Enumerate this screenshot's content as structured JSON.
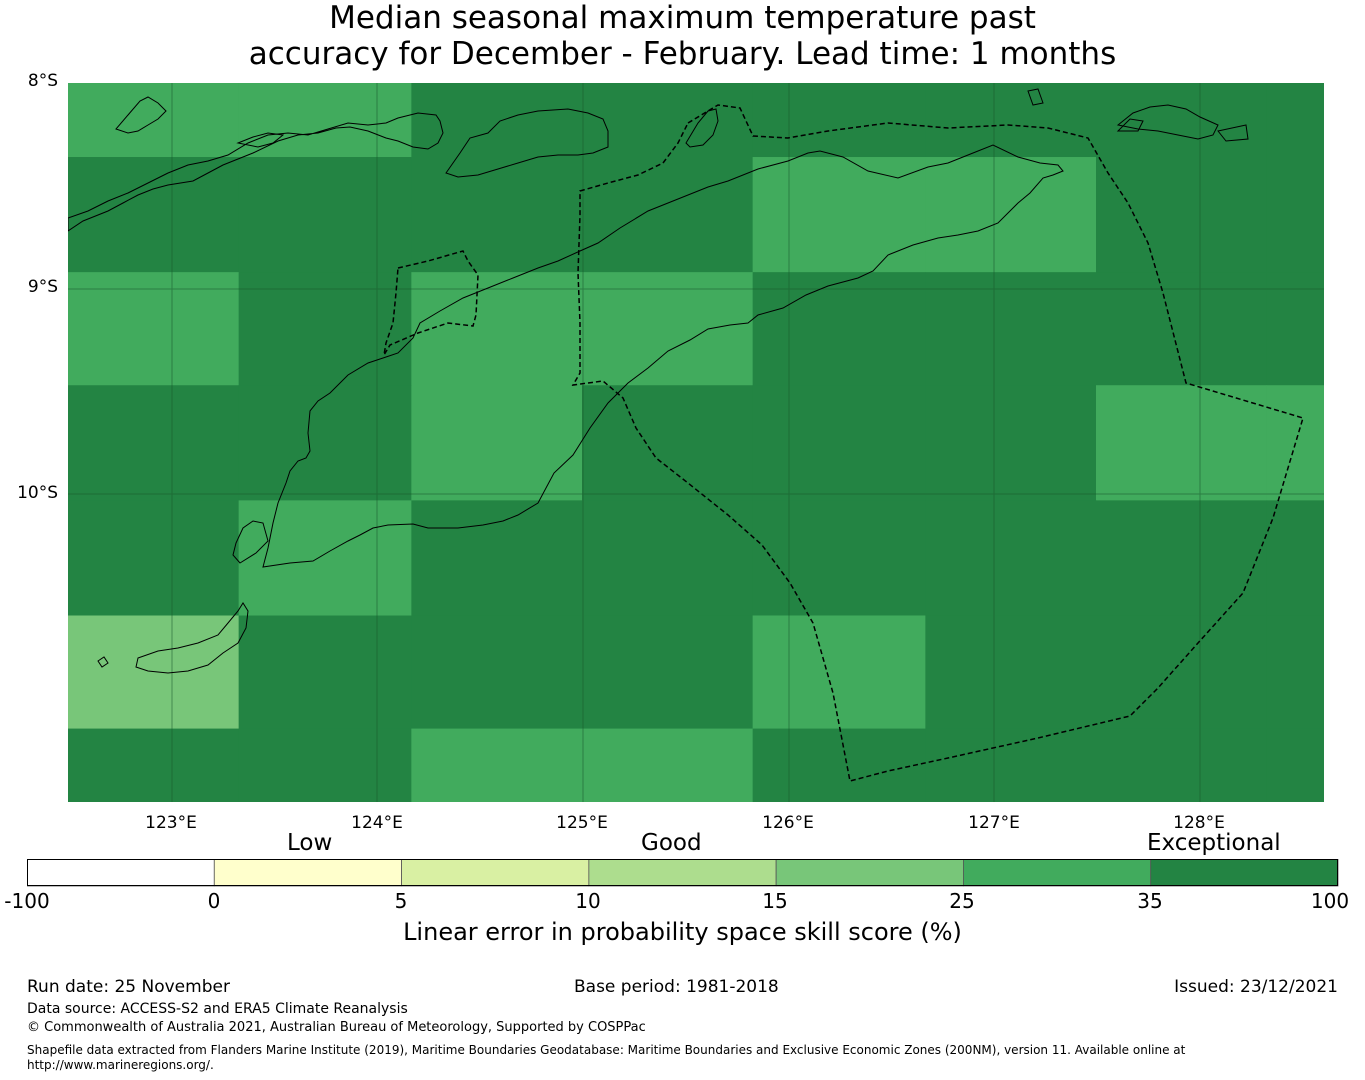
{
  "title": {
    "line1": "Median seasonal maximum temperature past",
    "line2": "accuracy for December - February. Lead time: 1 months"
  },
  "map": {
    "lat_labels": [
      "8°S",
      "9°S",
      "10°S"
    ],
    "lon_labels": [
      "123°E",
      "124°E",
      "125°E",
      "126°E",
      "127°E",
      "128°E"
    ],
    "cells": [
      {
        "lon": 122.5,
        "lat": -8.0,
        "cls": 5
      },
      {
        "lon": 123.33,
        "lat": -8.0,
        "cls": 5
      },
      {
        "lon": 124.17,
        "lat": -8.0,
        "cls": 6
      },
      {
        "lon": 125.0,
        "lat": -8.0,
        "cls": 6
      },
      {
        "lon": 125.83,
        "lat": -8.0,
        "cls": 6
      },
      {
        "lon": 126.67,
        "lat": -8.0,
        "cls": 6
      },
      {
        "lon": 127.5,
        "lat": -8.0,
        "cls": 6
      },
      {
        "lon": 128.33,
        "lat": -8.0,
        "cls": 6
      },
      {
        "lon": 122.5,
        "lat": -8.33,
        "cls": 6
      },
      {
        "lon": 123.33,
        "lat": -8.33,
        "cls": 6
      },
      {
        "lon": 124.17,
        "lat": -8.33,
        "cls": 6
      },
      {
        "lon": 125.0,
        "lat": -8.33,
        "cls": 6
      },
      {
        "lon": 125.83,
        "lat": -8.33,
        "cls": 5
      },
      {
        "lon": 126.67,
        "lat": -8.33,
        "cls": 5
      },
      {
        "lon": 127.5,
        "lat": -8.33,
        "cls": 6
      },
      {
        "lon": 128.33,
        "lat": -8.33,
        "cls": 6
      },
      {
        "lon": 122.5,
        "lat": -8.89,
        "cls": 5
      },
      {
        "lon": 123.33,
        "lat": -8.89,
        "cls": 6
      },
      {
        "lon": 124.17,
        "lat": -8.89,
        "cls": 5
      },
      {
        "lon": 125.0,
        "lat": -8.89,
        "cls": 5
      },
      {
        "lon": 125.83,
        "lat": -8.89,
        "cls": 6
      },
      {
        "lon": 126.67,
        "lat": -8.89,
        "cls": 6
      },
      {
        "lon": 127.5,
        "lat": -8.89,
        "cls": 6
      },
      {
        "lon": 128.33,
        "lat": -8.89,
        "cls": 6
      },
      {
        "lon": 122.5,
        "lat": -9.44,
        "cls": 6
      },
      {
        "lon": 123.33,
        "lat": -9.44,
        "cls": 6
      },
      {
        "lon": 124.17,
        "lat": -9.44,
        "cls": 5
      },
      {
        "lon": 125.0,
        "lat": -9.44,
        "cls": 6
      },
      {
        "lon": 125.83,
        "lat": -9.44,
        "cls": 6
      },
      {
        "lon": 126.67,
        "lat": -9.44,
        "cls": 6
      },
      {
        "lon": 127.5,
        "lat": -9.44,
        "cls": 5
      },
      {
        "lon": 128.33,
        "lat": -9.44,
        "cls": 5
      },
      {
        "lon": 122.5,
        "lat": -10.0,
        "cls": 6
      },
      {
        "lon": 123.33,
        "lat": -10.0,
        "cls": 5
      },
      {
        "lon": 124.17,
        "lat": -10.0,
        "cls": 6
      },
      {
        "lon": 125.0,
        "lat": -10.0,
        "cls": 6
      },
      {
        "lon": 125.83,
        "lat": -10.0,
        "cls": 6
      },
      {
        "lon": 126.67,
        "lat": -10.0,
        "cls": 6
      },
      {
        "lon": 127.5,
        "lat": -10.0,
        "cls": 6
      },
      {
        "lon": 128.33,
        "lat": -10.0,
        "cls": 6
      },
      {
        "lon": 122.5,
        "lat": -10.56,
        "cls": 4
      },
      {
        "lon": 123.33,
        "lat": -10.56,
        "cls": 6
      },
      {
        "lon": 124.17,
        "lat": -10.56,
        "cls": 6
      },
      {
        "lon": 125.0,
        "lat": -10.56,
        "cls": 6
      },
      {
        "lon": 125.83,
        "lat": -10.56,
        "cls": 5
      },
      {
        "lon": 126.67,
        "lat": -10.56,
        "cls": 6
      },
      {
        "lon": 127.5,
        "lat": -10.56,
        "cls": 6
      },
      {
        "lon": 128.33,
        "lat": -10.56,
        "cls": 6
      },
      {
        "lon": 122.5,
        "lat": -11.11,
        "cls": 6
      },
      {
        "lon": 123.33,
        "lat": -11.11,
        "cls": 6
      },
      {
        "lon": 124.17,
        "lat": -11.11,
        "cls": 5
      },
      {
        "lon": 125.0,
        "lat": -11.11,
        "cls": 5
      },
      {
        "lon": 125.83,
        "lat": -11.11,
        "cls": 6
      },
      {
        "lon": 126.67,
        "lat": -11.11,
        "cls": 6
      },
      {
        "lon": 127.5,
        "lat": -11.11,
        "cls": 6
      },
      {
        "lon": 128.33,
        "lat": -11.11,
        "cls": 6
      }
    ]
  },
  "colorbar": {
    "categories": [
      "Low",
      "Good",
      "Exceptional"
    ],
    "ticks": [
      "-100",
      "0",
      "5",
      "10",
      "15",
      "25",
      "35",
      "100"
    ],
    "colors": [
      "#ffffff",
      "#ffffcc",
      "#d9f0a3",
      "#addd8e",
      "#78c679",
      "#41ab5d",
      "#238443"
    ],
    "title": "Linear error in probability space skill score (%)"
  },
  "footer": {
    "run_date": "Run date: 25 November",
    "base_period": "Base period: 1981-2018",
    "issued": "Issued: 23/12/2021",
    "data_source": "Data source: ACCESS-S2 and ERA5 Climate Reanalysis",
    "copyright": "© Commonwealth of Australia 2021, Australian Bureau of Meteorology, Supported by COSPPac",
    "shapefile_line1": "Shapefile data extracted from Flanders Marine Institute (2019), Maritime Boundaries Geodatabase: Maritime Boundaries and Exclusive Economic Zones (200NM), version 11. Available online at",
    "shapefile_line2": "http://www.marineregions.org/."
  }
}
